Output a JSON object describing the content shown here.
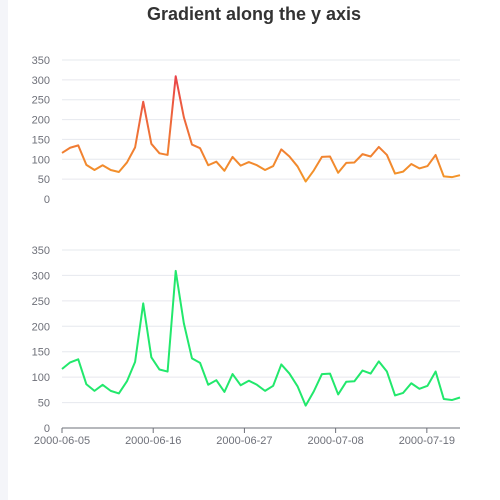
{
  "colors": {
    "top_gradient_high": "#e8364e",
    "top_gradient_low": "#f5a623",
    "bottom_line": "#22e86c",
    "grid": "#e6e8ee",
    "axis": "#6e7079"
  },
  "chart_data": [
    {
      "type": "line",
      "title": "Gradient along the y axis",
      "ylim": [
        0,
        350
      ],
      "yticks": [
        0,
        50,
        100,
        150,
        200,
        250,
        300,
        350
      ],
      "x_start": "2000-06-05",
      "x_end": "2000-07-23",
      "xlabels_shown": false,
      "color_mapping": "gradient along y axis",
      "series": [
        {
          "values": [
            116,
            129,
            135,
            86,
            73,
            85,
            73,
            68,
            92,
            130,
            245,
            139,
            115,
            111,
            309,
            206,
            137,
            128,
            85,
            94,
            71,
            106,
            84,
            93,
            85,
            73,
            83,
            125,
            107,
            82,
            44,
            72,
            106,
            107,
            66,
            91,
            92,
            113,
            107,
            131,
            111,
            64,
            69,
            88,
            77,
            83,
            111,
            57,
            55,
            60
          ]
        }
      ]
    },
    {
      "type": "line",
      "ylim": [
        0,
        350
      ],
      "yticks": [
        0,
        50,
        100,
        150,
        200,
        250,
        300,
        350
      ],
      "x_start": "2000-06-05",
      "x_end": "2000-07-23",
      "xticks": [
        "2000-06-05",
        "2000-06-16",
        "2000-06-27",
        "2000-07-08",
        "2000-07-19"
      ],
      "series": [
        {
          "values": [
            116,
            129,
            135,
            86,
            73,
            85,
            73,
            68,
            92,
            130,
            245,
            139,
            115,
            111,
            309,
            206,
            137,
            128,
            85,
            94,
            71,
            106,
            84,
            93,
            85,
            73,
            83,
            125,
            107,
            82,
            44,
            72,
            106,
            107,
            66,
            91,
            92,
            113,
            107,
            131,
            111,
            64,
            69,
            88,
            77,
            83,
            111,
            57,
            55,
            60
          ]
        }
      ]
    }
  ]
}
